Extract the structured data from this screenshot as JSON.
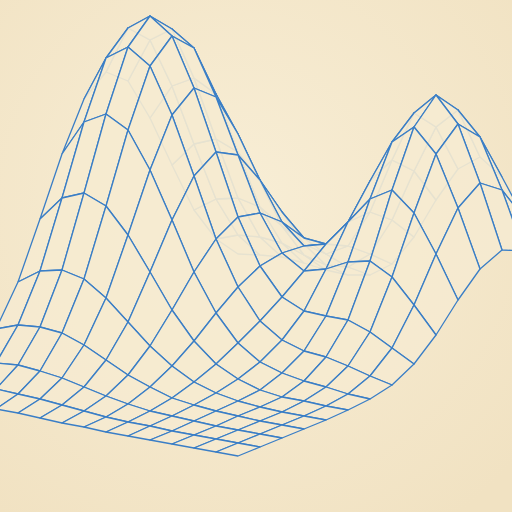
{
  "chart_data": {
    "type": "surface",
    "color": "#3a7ec6",
    "tick_labels": false,
    "z": [
      [
        3,
        3,
        3,
        3,
        3,
        2,
        1,
        1,
        0,
        0,
        0,
        0,
        0,
        0,
        0
      ],
      [
        8,
        9,
        10,
        9,
        8,
        6,
        4,
        2,
        1,
        1,
        0,
        0,
        0,
        0,
        0
      ],
      [
        20,
        23,
        25,
        23,
        20,
        15,
        10,
        6,
        3,
        2,
        1,
        0,
        0,
        0,
        0
      ],
      [
        44,
        52,
        54,
        52,
        44,
        33,
        22,
        14,
        7,
        4,
        2,
        1,
        0,
        0,
        0
      ],
      [
        82,
        97,
        102,
        97,
        82,
        62,
        42,
        26,
        14,
        7,
        3,
        1,
        0,
        0,
        0
      ],
      [
        136,
        161,
        170,
        161,
        136,
        103,
        69,
        42,
        23,
        12,
        5,
        2,
        2,
        1,
        1
      ],
      [
        192,
        228,
        240,
        228,
        192,
        146,
        98,
        61,
        35,
        20,
        13,
        9,
        7,
        4,
        3
      ],
      [
        238,
        283,
        298,
        283,
        238,
        181,
        122,
        78,
        48,
        33,
        26,
        24,
        19,
        13,
        8
      ],
      [
        256,
        304,
        320,
        304,
        256,
        196,
        135,
        90,
        63,
        53,
        52,
        52,
        44,
        32,
        20
      ],
      [
        238,
        283,
        298,
        283,
        238,
        184,
        130,
        94,
        80,
        86,
        97,
        102,
        90,
        66,
        40
      ],
      [
        192,
        228,
        240,
        228,
        192,
        150,
        112,
        92,
        98,
        124,
        151,
        164,
        145,
        108,
        66
      ],
      [
        136,
        161,
        170,
        161,
        136,
        109,
        87,
        85,
        111,
        156,
        199,
        218,
        195,
        145,
        88
      ],
      [
        82,
        97,
        102,
        97,
        82,
        68,
        62,
        74,
        112,
        168,
        219,
        241,
        216,
        161,
        98
      ],
      [
        44,
        52,
        54,
        52,
        44,
        38,
        40,
        57,
        95,
        148,
        196,
        217,
        194,
        145,
        88
      ],
      [
        20,
        23,
        25,
        23,
        20,
        19,
        23,
        38,
        69,
        110,
        145,
        161,
        145,
        108,
        66
      ]
    ]
  }
}
